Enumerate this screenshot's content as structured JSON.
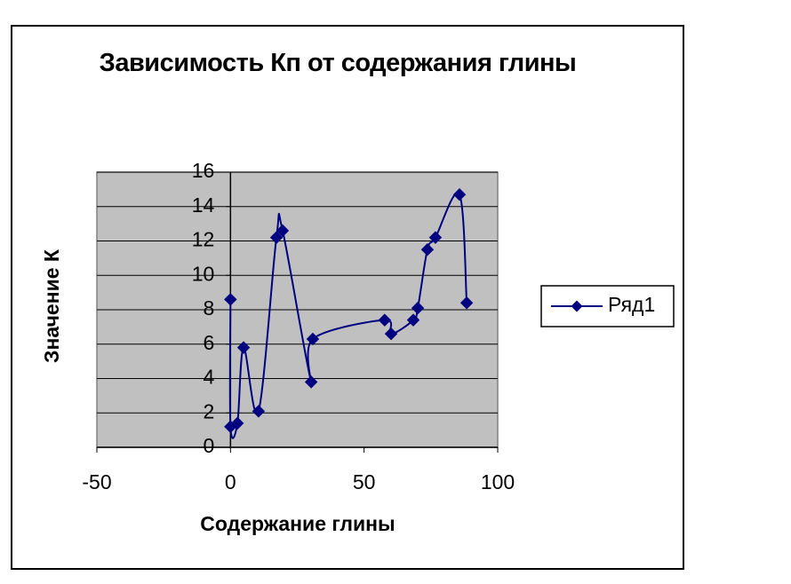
{
  "chart_data": {
    "type": "scatter-line",
    "title": "Зависимость Кп от содержания глины",
    "x_label": "Содержание глины",
    "y_label": "Значение К",
    "series": [
      {
        "name": "Ряд1",
        "color": "#000080",
        "x": [
          0,
          0,
          2.6,
          4.9,
          10.5,
          17.2,
          19.5,
          30.2,
          30.8,
          57.7,
          60.1,
          68.4,
          70.1,
          73.7,
          76.7,
          85.7,
          88.4
        ],
        "values": [
          8.6,
          1.2,
          1.4,
          5.8,
          2.1,
          12.2,
          12.6,
          3.8,
          6.3,
          7.4,
          6.6,
          7.4,
          8.1,
          11.5,
          12.2,
          14.7,
          8.4
        ]
      }
    ],
    "xlim": [
      -50,
      100
    ],
    "xticks": [
      -50,
      0,
      50,
      100
    ],
    "ylim": [
      0,
      16
    ],
    "yticks": [
      0,
      2,
      4,
      6,
      8,
      10,
      12,
      14,
      16
    ],
    "grid": true,
    "legend": "right"
  }
}
